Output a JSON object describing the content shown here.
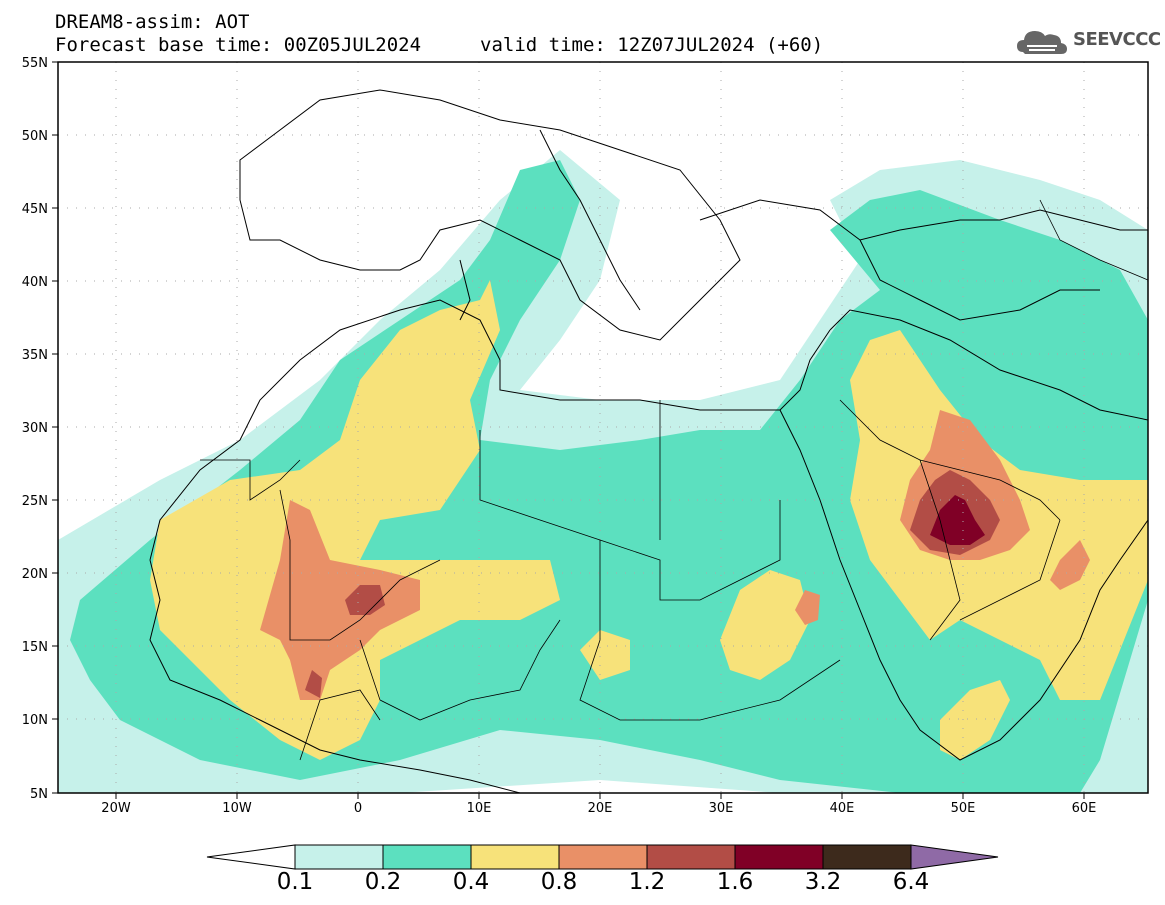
{
  "header": {
    "product": "DREAM8-assim: AOT",
    "base_time": "Forecast base time: 00Z05JUL2024",
    "valid_time": "valid time: 12Z07JUL2024 (+60)"
  },
  "logo": {
    "text": "SEEVCCC",
    "icon": "cloud-icon"
  },
  "axes": {
    "lat_labels": [
      "55N",
      "50N",
      "45N",
      "40N",
      "35N",
      "30N",
      "25N",
      "20N",
      "15N",
      "10N",
      "5N"
    ],
    "lon_labels": [
      "20W",
      "10W",
      "0",
      "10E",
      "20E",
      "30E",
      "40E",
      "50E",
      "60E"
    ]
  },
  "colorbar": {
    "labels": [
      "0.1",
      "0.2",
      "0.4",
      "0.8",
      "1.2",
      "1.6",
      "3.2",
      "6.4"
    ],
    "colors": [
      "#c6f1ea",
      "#5ce0bf",
      "#f7e27a",
      "#e99067",
      "#b24d46",
      "#800026",
      "#3d2a1c",
      "#8f6aa6"
    ]
  },
  "colors": {
    "aot_01": "#c6f1ea",
    "aot_02": "#5ce0bf",
    "aot_04": "#f7e27a",
    "aot_08": "#e99067",
    "aot_12": "#b24d46",
    "aot_16": "#800026"
  }
}
